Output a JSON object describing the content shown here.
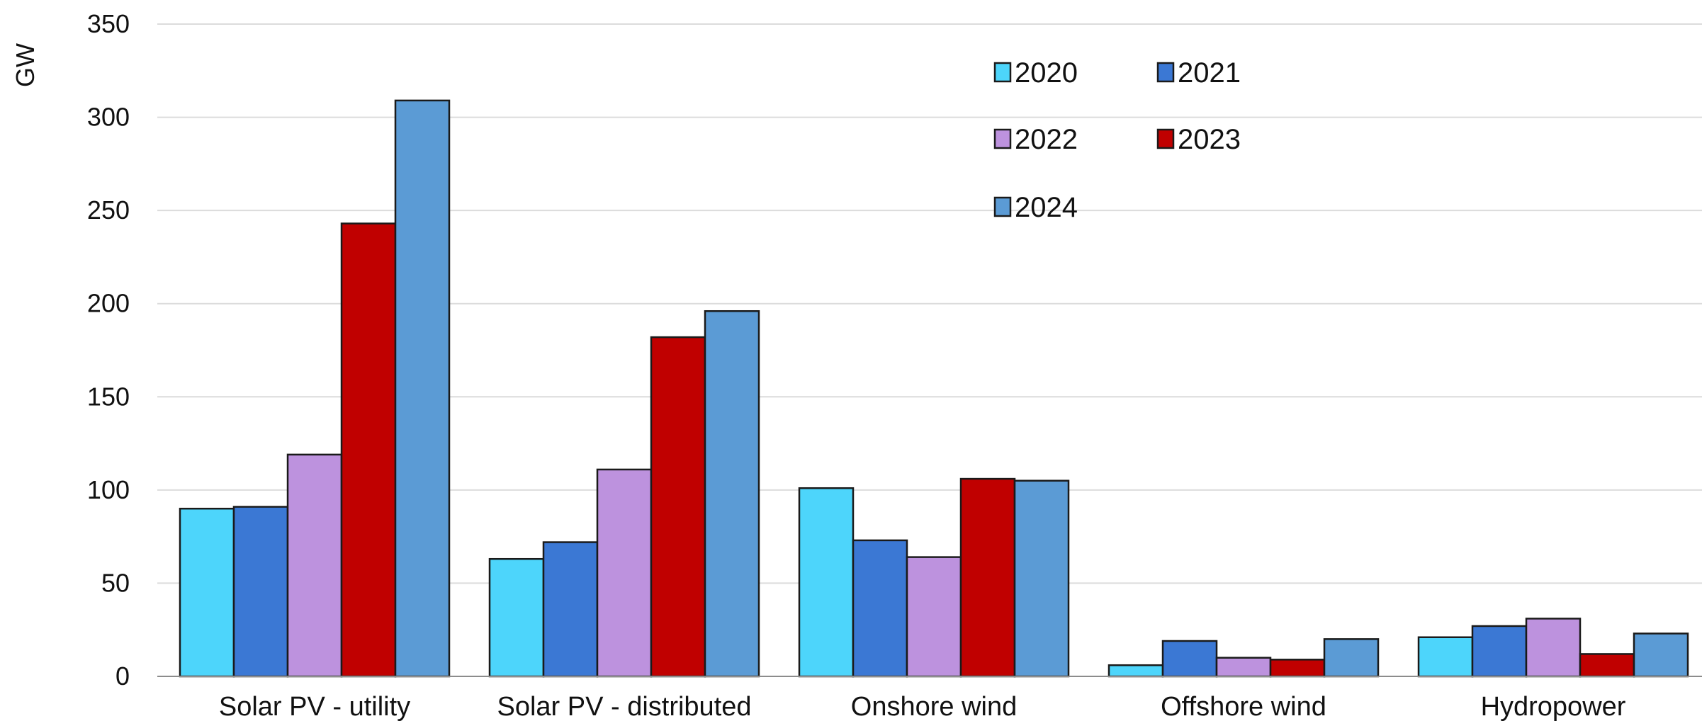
{
  "chart_data": {
    "type": "bar",
    "title": "",
    "xlabel": "",
    "ylabel": "GW",
    "ylim": [
      0,
      350
    ],
    "yticks": [
      0,
      50,
      100,
      150,
      200,
      250,
      300,
      350
    ],
    "grid": true,
    "legend_position": "top-center",
    "categories": [
      "Solar PV - utility",
      "Solar PV - distributed",
      "Onshore wind",
      "Offshore wind",
      "Hydropower"
    ],
    "series": [
      {
        "name": "2020",
        "color": "#4dd5fb",
        "values": [
          90,
          63,
          101,
          6,
          21
        ]
      },
      {
        "name": "2021",
        "color": "#3b78d4",
        "values": [
          91,
          72,
          73,
          19,
          27
        ]
      },
      {
        "name": "2022",
        "color": "#bd92de",
        "values": [
          119,
          111,
          64,
          10,
          31
        ]
      },
      {
        "name": "2023",
        "color": "#c00000",
        "values": [
          243,
          182,
          106,
          9,
          12
        ]
      },
      {
        "name": "2024",
        "color": "#5b9bd5",
        "values": [
          309,
          196,
          105,
          20,
          23
        ]
      }
    ]
  }
}
